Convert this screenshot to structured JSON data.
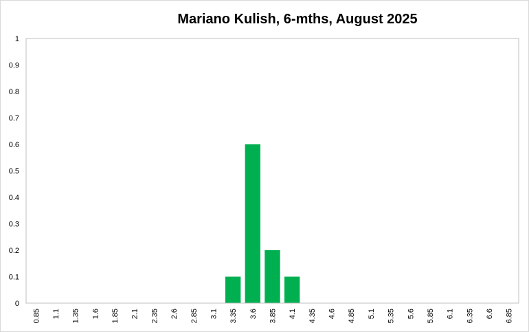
{
  "chart_data": {
    "type": "bar",
    "title": "Mariano Kulish, 6-mths, August 2025",
    "xlabel": "",
    "ylabel": "",
    "ylim": [
      0,
      1
    ],
    "y_ticks": [
      "0",
      "0.1",
      "0.2",
      "0.3",
      "0.4",
      "0.5",
      "0.6",
      "0.7",
      "0.8",
      "0.9",
      "1"
    ],
    "categories": [
      "0.85",
      "1.1",
      "1.35",
      "1.6",
      "1.85",
      "2.1",
      "2.35",
      "2.6",
      "2.85",
      "3.1",
      "3.35",
      "3.6",
      "3.85",
      "4.1",
      "4.35",
      "4.6",
      "4.85",
      "5.1",
      "5.35",
      "5.6",
      "5.85",
      "6.1",
      "6.35",
      "6.6",
      "6.85"
    ],
    "values": [
      0,
      0,
      0,
      0,
      0,
      0,
      0,
      0,
      0,
      0,
      0.1,
      0.6,
      0.2,
      0.1,
      0,
      0,
      0,
      0,
      0,
      0,
      0,
      0,
      0,
      0,
      0
    ],
    "bar_color": "#00b050",
    "grid": false,
    "legend": "none"
  }
}
